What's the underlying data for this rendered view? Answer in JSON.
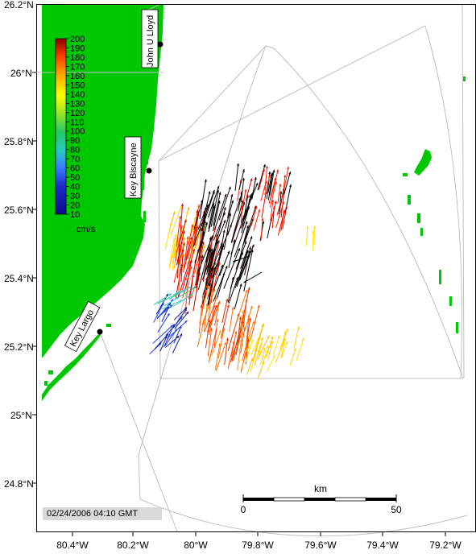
{
  "map": {
    "lat_labels": [
      "26.2°N",
      "26°N",
      "25.8°N",
      "25.6°N",
      "25.4°N",
      "25.2°N",
      "25°N",
      "24.8°N"
    ],
    "lon_labels": [
      "80.4°W",
      "80.2°W",
      "80°W",
      "79.8°W",
      "79.6°W",
      "79.4°W",
      "79.2°W"
    ],
    "land_color": "#00c800",
    "boundary_color": "#c0c0c0"
  },
  "colorbar": {
    "ticks": [
      "200",
      "190",
      "180",
      "170",
      "160",
      "150",
      "140",
      "130",
      "120",
      "110",
      "100",
      "90",
      "80",
      "70",
      "60",
      "50",
      "40",
      "30",
      "20",
      "10"
    ],
    "unit": "cm/s"
  },
  "stations": [
    {
      "name": "John U Lloyd"
    },
    {
      "name": "Key Biscayne"
    },
    {
      "name": "Key Largo"
    }
  ],
  "scale_bar": {
    "unit": "km",
    "start": "0",
    "end": "50"
  },
  "timestamp": "02/24/2006 04:10 GMT"
}
